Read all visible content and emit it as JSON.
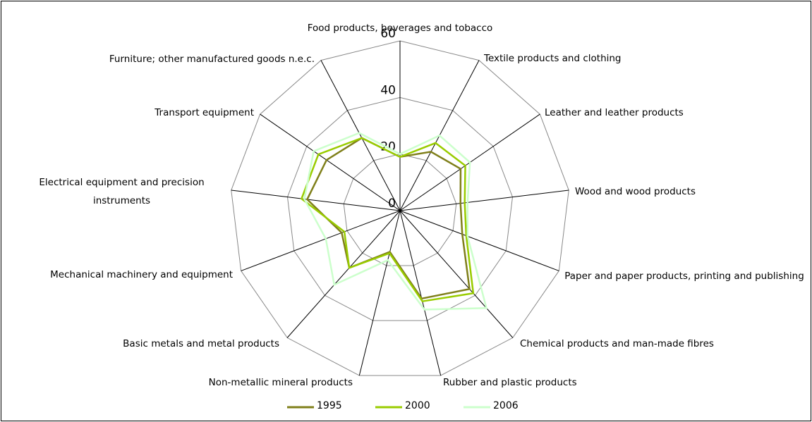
{
  "chart_data": {
    "type": "radar",
    "categories": [
      "Food products, beverages and tobacco",
      "Textile products and clothing",
      "Leather and leather products",
      "Wood and wood products",
      "Paper and paper products, printing and publishing",
      "Chemical products and man-made fibres",
      "Rubber and plastic products",
      "Non-metallic mineral products",
      "Basic metals and metal products",
      "Mechanical machinery and equipment",
      "Electrical equipment and precision instruments",
      "Transport equipment",
      "Furniture; other manufactured goods n.e.c."
    ],
    "series": [
      {
        "name": "1995",
        "color": "#7f7f1a",
        "values": [
          19,
          23.5,
          26,
          21.5,
          23.5,
          37,
          32,
          15,
          27,
          22,
          33,
          31.5,
          29
        ]
      },
      {
        "name": "2000",
        "color": "#99cc00",
        "values": [
          19,
          27,
          28,
          23,
          25,
          39,
          33,
          15.5,
          27,
          21,
          35,
          35,
          29
        ]
      },
      {
        "name": "2006",
        "color": "#ccffcc",
        "values": [
          20,
          30,
          30,
          24,
          25.5,
          46,
          36,
          18,
          35,
          28,
          34,
          37,
          31
        ]
      }
    ],
    "ylim": [
      0,
      60
    ],
    "yticks": [
      0,
      20,
      40,
      60
    ],
    "grid": true
  }
}
